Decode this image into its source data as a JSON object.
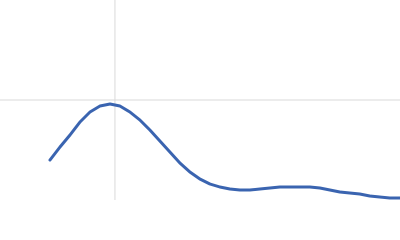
{
  "chart_data": {
    "type": "line",
    "x": [
      0.435,
      0.522,
      0.609,
      0.696,
      0.783,
      0.87,
      0.957,
      1.043,
      1.13,
      1.217,
      1.304,
      1.391,
      1.478,
      1.565,
      1.652,
      1.739,
      1.826,
      1.913,
      2.0,
      2.087,
      2.174,
      2.261,
      2.348,
      2.435,
      2.522,
      2.609,
      2.696,
      2.783,
      2.87,
      2.957,
      3.043,
      3.13,
      3.217,
      3.304,
      3.391,
      3.478
    ],
    "series": [
      {
        "color": "#3a64b0",
        "values": [
          0.4,
          0.53,
          0.65,
          0.78,
          0.88,
          0.94,
          0.96,
          0.94,
          0.88,
          0.8,
          0.7,
          0.59,
          0.48,
          0.37,
          0.28,
          0.21,
          0.16,
          0.13,
          0.11,
          0.1,
          0.1,
          0.11,
          0.12,
          0.13,
          0.13,
          0.13,
          0.13,
          0.12,
          0.1,
          0.08,
          0.07,
          0.06,
          0.04,
          0.03,
          0.02,
          0.02
        ]
      }
    ],
    "xlim": [
      0,
      3.48
    ],
    "ylim": [
      0,
      2
    ],
    "xticks": [
      1
    ],
    "yticks": [
      1
    ],
    "grid": true,
    "tick_labels": false
  }
}
